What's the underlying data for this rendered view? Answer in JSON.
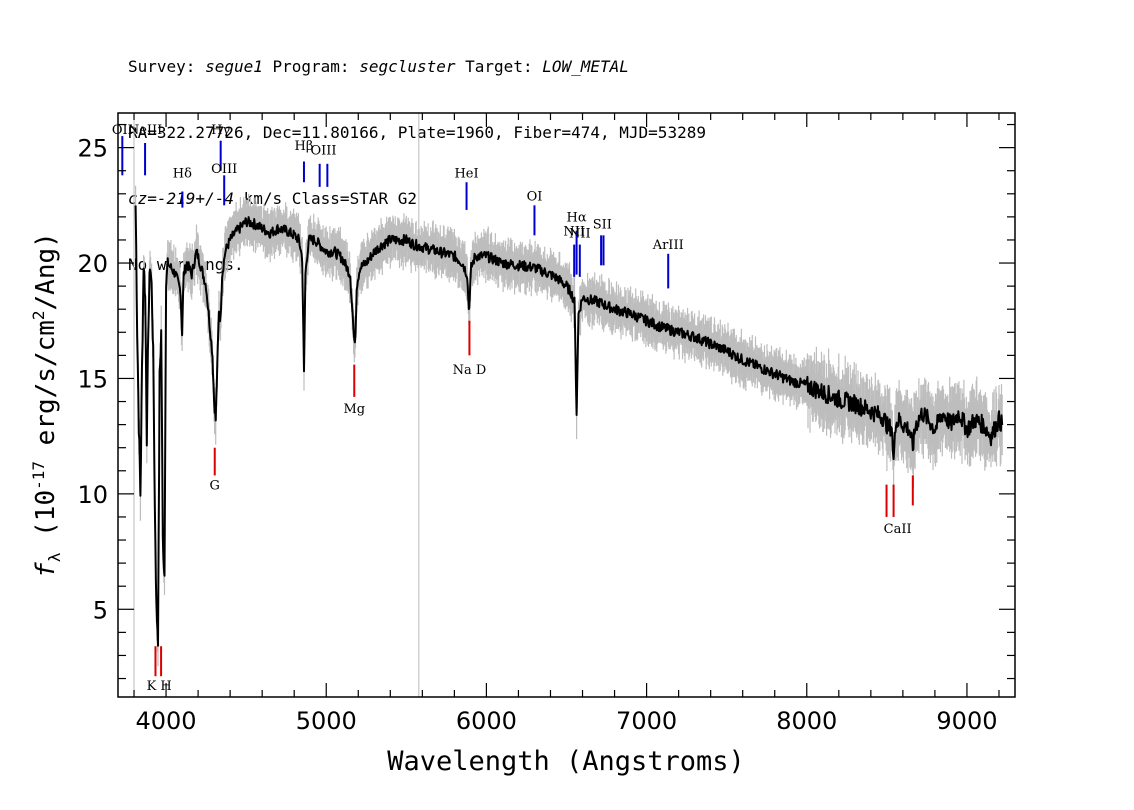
{
  "header": {
    "line1": [
      {
        "t": "Survey: ",
        "i": false
      },
      {
        "t": "segue1",
        "i": true
      },
      {
        "t": " Program: ",
        "i": false
      },
      {
        "t": "segcluster",
        "i": true
      },
      {
        "t": " Target: ",
        "i": false
      },
      {
        "t": "LOW_METAL",
        "i": true
      }
    ],
    "line2": [
      {
        "t": "RA=322.27726, Dec=11.80166, Plate=1960, Fiber=474, MJD=53289",
        "i": false
      }
    ],
    "line3": [
      {
        "t": "cz=-219+/-4",
        "i": true
      },
      {
        "t": " km/s Class=STAR G2",
        "i": false
      }
    ],
    "line4": [
      {
        "t": "No warnings.",
        "i": false
      }
    ]
  },
  "chart_data": {
    "type": "line",
    "xlabel": "Wavelength (Angstroms)",
    "ylabel": "f_λ (10^-17 erg/s/cm^2/Ang)",
    "xlim": [
      3700,
      9300
    ],
    "ylim": [
      1.2,
      26.5
    ],
    "xticks": [
      4000,
      5000,
      6000,
      7000,
      8000,
      9000
    ],
    "yticks": [
      5,
      10,
      15,
      20,
      25
    ],
    "colors": {
      "flux": "#000000",
      "error_band": "#bdbdbd",
      "emission": "#0000cc",
      "absorption": "#dd0000",
      "reference": "#bbbbbb"
    },
    "reference_lines": [
      3800,
      5578
    ],
    "series": [
      {
        "name": "flux",
        "x": [
          3810,
          3820,
          3830,
          3840,
          3850,
          3860,
          3870,
          3880,
          3890,
          3900,
          3910,
          3920,
          3930,
          3940,
          3950,
          3960,
          3970,
          3980,
          3990,
          4000,
          4010,
          4030,
          4060,
          4090,
          4100,
          4110,
          4130,
          4160,
          4190,
          4220,
          4250,
          4270,
          4290,
          4300,
          4310,
          4320,
          4330,
          4340,
          4350,
          4370,
          4400,
          4430,
          4460,
          4500,
          4550,
          4600,
          4650,
          4700,
          4750,
          4800,
          4830,
          4850,
          4861,
          4870,
          4890,
          4930,
          5000,
          5050,
          5100,
          5150,
          5167,
          5175,
          5183,
          5190,
          5210,
          5250,
          5300,
          5350,
          5400,
          5450,
          5500,
          5550,
          5600,
          5700,
          5800,
          5850,
          5880,
          5890,
          5896,
          5905,
          5930,
          6000,
          6100,
          6200,
          6300,
          6400,
          6450,
          6500,
          6530,
          6550,
          6563,
          6575,
          6600,
          6700,
          6800,
          6900,
          7000,
          7100,
          7200,
          7300,
          7400,
          7500,
          7600,
          7700,
          7800,
          7900,
          8000,
          8100,
          8200,
          8300,
          8400,
          8480,
          8500,
          8510,
          8530,
          8542,
          8550,
          8580,
          8600,
          8640,
          8662,
          8680,
          8720,
          8760,
          8800,
          8850,
          8900,
          8950,
          9000,
          9050,
          9100,
          9150,
          9200,
          9220
        ],
        "y": [
          22.5,
          17.0,
          13.0,
          10.0,
          15.5,
          20.0,
          18.5,
          12.5,
          17.5,
          20.0,
          19.0,
          16.0,
          9.5,
          5.0,
          3.8,
          15.0,
          17.0,
          8.0,
          6.5,
          19.0,
          20.0,
          19.8,
          19.5,
          18.8,
          17.0,
          19.5,
          20.0,
          19.5,
          20.5,
          19.8,
          19.0,
          17.5,
          16.0,
          14.0,
          13.2,
          15.5,
          18.0,
          17.5,
          19.5,
          20.5,
          21.0,
          21.3,
          21.5,
          21.8,
          21.7,
          21.5,
          21.3,
          21.5,
          21.4,
          21.2,
          21.0,
          20.2,
          15.2,
          19.5,
          21.0,
          21.0,
          20.5,
          20.5,
          20.2,
          19.5,
          17.5,
          16.5,
          17.0,
          19.0,
          19.8,
          20.0,
          20.5,
          20.8,
          21.0,
          21.0,
          21.0,
          20.8,
          20.7,
          20.5,
          20.3,
          20.0,
          19.5,
          18.0,
          18.5,
          19.8,
          20.3,
          20.3,
          20.0,
          19.9,
          19.8,
          19.5,
          19.3,
          19.0,
          18.7,
          18.3,
          13.5,
          17.8,
          18.5,
          18.3,
          18.0,
          17.8,
          17.5,
          17.2,
          17.0,
          16.8,
          16.5,
          16.2,
          15.8,
          15.5,
          15.2,
          14.9,
          14.7,
          14.4,
          14.1,
          13.9,
          13.6,
          13.3,
          13.0,
          12.8,
          13.0,
          11.2,
          13.0,
          13.2,
          13.0,
          12.8,
          12.0,
          13.0,
          13.5,
          13.2,
          12.8,
          13.5,
          13.0,
          13.5,
          12.8,
          13.2,
          13.0,
          12.5,
          13.2,
          13.0
        ]
      }
    ],
    "emission_lines": [
      {
        "label": "OII",
        "wave": 3727,
        "ytop": 25.5,
        "ybot": 23.8,
        "label_y": 25.6
      },
      {
        "label": "NeIII",
        "wave": 3869,
        "ytop": 25.2,
        "ybot": 23.8,
        "label_y": 25.6
      },
      {
        "label": "Hδ",
        "wave": 4102,
        "ytop": 23.1,
        "ybot": 22.4,
        "label_y": 23.7
      },
      {
        "label": "Hγ",
        "wave": 4341,
        "ytop": 25.3,
        "ybot": 24.0,
        "label_y": 25.6
      },
      {
        "label": "OIII",
        "wave": 4363,
        "ytop": 23.8,
        "ybot": 22.5,
        "label_y": 23.9
      },
      {
        "label": "Hβ",
        "wave": 4861,
        "ytop": 24.4,
        "ybot": 23.5,
        "label_y": 24.9
      },
      {
        "label": "OIII",
        "wave": 4959,
        "ytop": 24.3,
        "ybot": 23.3,
        "label_y": 24.7
      },
      {
        "label": "OIII",
        "wave": 5007,
        "ytop": 24.3,
        "ybot": 23.3,
        "label_y": 24.7
      },
      {
        "label": "HeI",
        "wave": 5876,
        "ytop": 23.5,
        "ybot": 22.3,
        "label_y": 23.7
      },
      {
        "label": "OI",
        "wave": 6300,
        "ytop": 22.5,
        "ybot": 21.2,
        "label_y": 22.7
      },
      {
        "label": "NII",
        "wave": 6548,
        "ytop": 20.8,
        "ybot": 19.4,
        "label_y": 21.2
      },
      {
        "label": "Hα",
        "wave": 6563,
        "ytop": 21.4,
        "ybot": 19.5,
        "label_y": 21.8
      },
      {
        "label": "NII",
        "wave": 6583,
        "ytop": 20.8,
        "ybot": 19.4,
        "label_y": 21.1
      },
      {
        "label": "SII",
        "wave": 6716,
        "ytop": 21.2,
        "ybot": 19.9,
        "label_y": 21.5
      },
      {
        "label": "SII",
        "wave": 6731,
        "ytop": 21.2,
        "ybot": 19.9,
        "label_y": 21.5
      },
      {
        "label": "ArIII",
        "wave": 7135,
        "ytop": 20.4,
        "ybot": 18.9,
        "label_y": 20.6
      }
    ],
    "absorption_lines": [
      {
        "label": "K",
        "wave": 3934,
        "ytop": 3.4,
        "ybot": 2.1,
        "label_y": 1.5
      },
      {
        "label": "H",
        "wave": 3969,
        "ytop": 3.4,
        "ybot": 2.1,
        "label_y": 1.5
      },
      {
        "label": "G",
        "wave": 4304,
        "ytop": 12.0,
        "ybot": 10.8,
        "label_y": 10.2
      },
      {
        "label": "Mg",
        "wave": 5175,
        "ytop": 15.6,
        "ybot": 14.2,
        "label_y": 13.5
      },
      {
        "label": "Na D",
        "wave": 5894,
        "ytop": 17.5,
        "ybot": 16.0,
        "label_y": 15.2
      },
      {
        "label": "CaII",
        "wave": 8498,
        "ytop": 10.4,
        "ybot": 9.0,
        "label_y": 8.3
      },
      {
        "label": "CaII",
        "wave": 8542,
        "ytop": 10.4,
        "ybot": 9.0,
        "label_y": 8.3
      },
      {
        "label": "CaII",
        "wave": 8662,
        "ytop": 10.8,
        "ybot": 9.5,
        "label_y": 8.3
      }
    ]
  }
}
